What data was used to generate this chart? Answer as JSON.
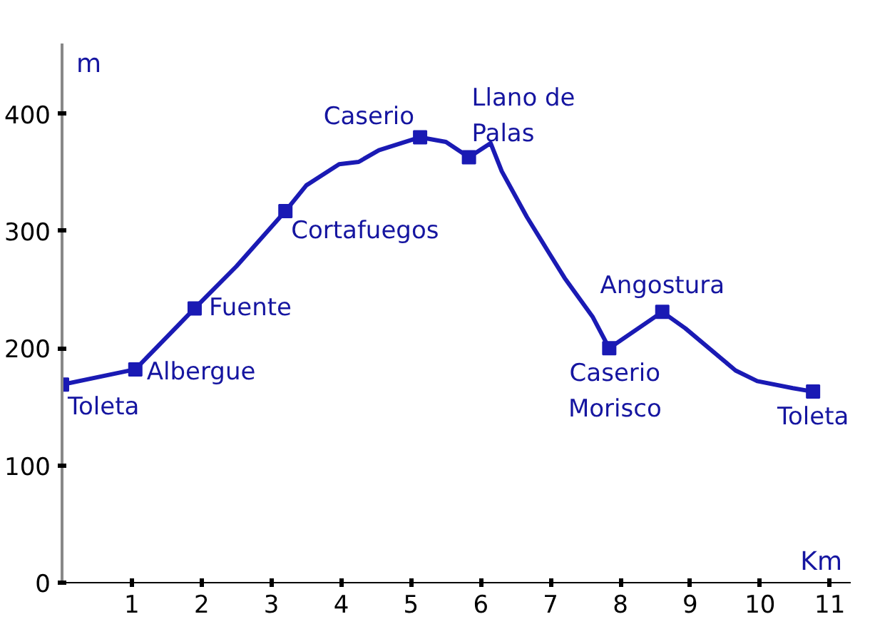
{
  "chart_data": {
    "type": "line",
    "xlabel": "Km",
    "ylabel": "m",
    "xlim": [
      0,
      11.3
    ],
    "ylim": [
      0,
      460
    ],
    "xticks": [
      1,
      2,
      3,
      4,
      5,
      6,
      7,
      8,
      9,
      10,
      11
    ],
    "yticks": [
      0,
      100,
      200,
      300,
      400
    ],
    "grid": false,
    "series": [
      {
        "color": "#1a1ab4",
        "marker": "none",
        "x": [
          0,
          1.05,
          1.9,
          2.5,
          3.2,
          3.5,
          3.97,
          4.25,
          4.54,
          5.13,
          5.5,
          5.83,
          6.14,
          6.3,
          6.66,
          6.97,
          7.2,
          7.6,
          7.84,
          8.6,
          8.93,
          9.65,
          9.96,
          10.47,
          10.76
        ],
        "values": [
          169,
          182,
          234,
          270,
          317,
          339,
          357,
          359,
          369,
          380,
          376,
          363,
          375,
          351,
          312,
          282,
          260,
          227,
          200,
          231,
          217,
          181,
          172,
          166,
          163
        ]
      },
      {
        "type": "scatter",
        "color": "#1a1ab4",
        "marker": "square",
        "x": [
          0,
          1.05,
          1.9,
          3.2,
          5.13,
          5.83,
          7.84,
          8.6,
          10.76
        ],
        "values": [
          169,
          182,
          234,
          317,
          380,
          363,
          200,
          231,
          163
        ]
      }
    ],
    "annotations": [
      {
        "text": "Toleta",
        "x": 0,
        "y": 169
      },
      {
        "text": "Albergue",
        "x": 1.05,
        "y": 182
      },
      {
        "text": "Fuente",
        "x": 1.9,
        "y": 234
      },
      {
        "text": "Cortafuegos",
        "x": 3.2,
        "y": 317
      },
      {
        "text": "Caserio",
        "x": 5.13,
        "y": 380
      },
      {
        "text": "Llano de\nPalas",
        "x": 5.83,
        "y": 363
      },
      {
        "text": "Caserio\nMorisco",
        "x": 7.84,
        "y": 200
      },
      {
        "text": "Angostura",
        "x": 8.6,
        "y": 231
      },
      {
        "text": "Toleta",
        "x": 10.76,
        "y": 163
      }
    ]
  }
}
